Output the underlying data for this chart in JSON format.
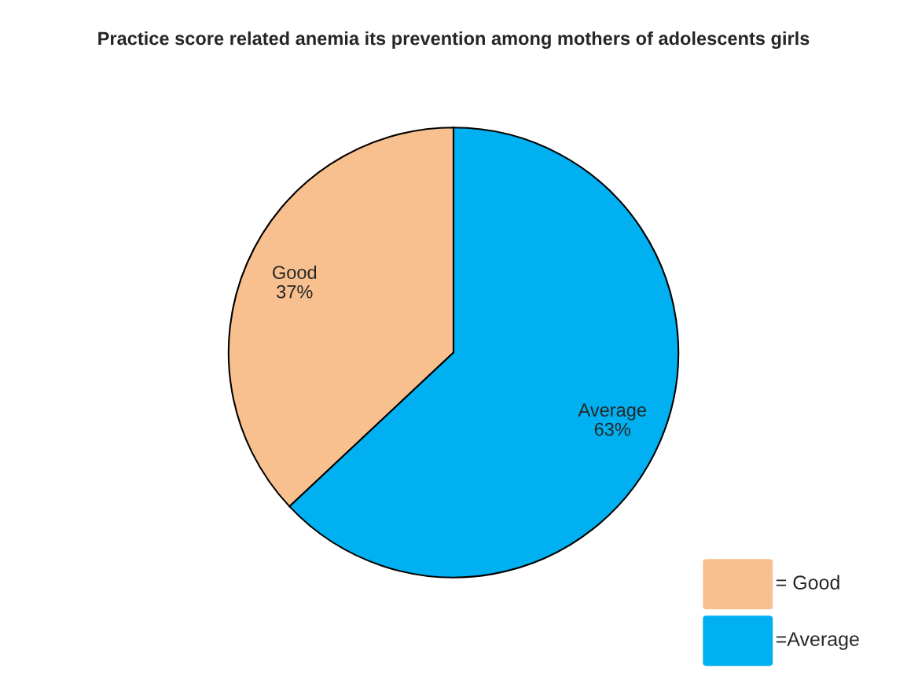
{
  "chart_data": {
    "type": "pie",
    "title": "Practice score related anemia its prevention among mothers of adolescents girls",
    "categories": [
      "Good",
      "Average"
    ],
    "values": [
      37,
      63
    ],
    "value_labels": [
      "37%",
      "63%"
    ],
    "colors": [
      "#f9c08f",
      "#00b0f0"
    ],
    "annotations": [
      "= Good",
      "=Average"
    ]
  }
}
